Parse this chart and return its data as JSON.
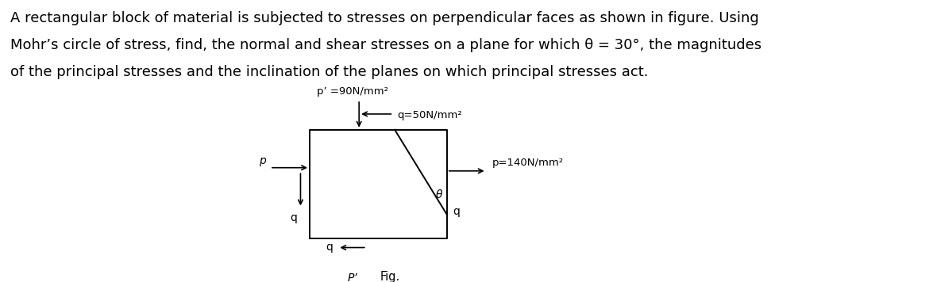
{
  "title_text": "A rectangular block of material is subjected to stresses on perpendicular faces as shown in figure. Using\nMohr’s circle of stress, find, the normal and shear stresses on a plane for which θ = 30°, the magnitudes\nof the principal stresses and the inclination of the planes on which principal stresses act.",
  "title_fontsize": 13.0,
  "title_color": "#000000",
  "background_color": "#ffffff",
  "label_p_prime_top": "p’ =90N/mm²",
  "label_q_top": "q=50N/mm²",
  "label_p_right": "p=140N/mm²",
  "label_p_left": "p",
  "label_q_left": "q",
  "label_q_bottom": "q",
  "label_q_right": "q",
  "label_theta": "θ",
  "label_fig": "Fig.",
  "label_p_prime_bottom": "P’"
}
